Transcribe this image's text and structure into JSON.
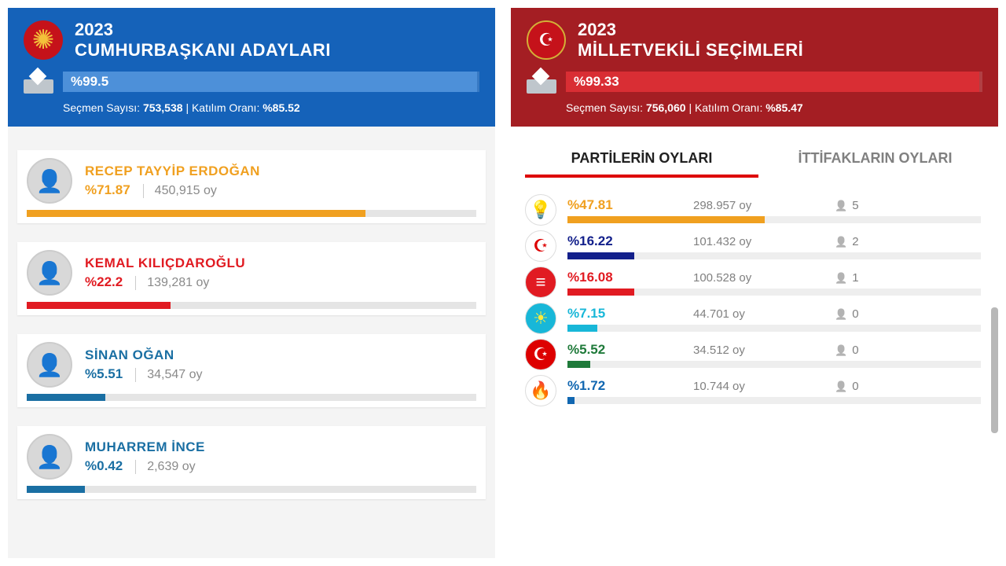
{
  "left": {
    "year": "2023",
    "title": "CUMHURBAŞKANI ADAYLARI",
    "header_bg": "#1562b9",
    "count_pct_text": "%99.5",
    "count_pct_value": 99.5,
    "count_fill_color": "#4d90d9",
    "meta_voters_label": "Seçmen Sayısı:",
    "meta_voters_value": "753,538",
    "meta_turnout_label": "Katılım Oranı:",
    "meta_turnout_value": "%85.52",
    "candidates": [
      {
        "name": "RECEP TAYYİP ERDOĞAN",
        "pct_text": "%71.87",
        "pct_value": 71.87,
        "votes": "450,915 oy",
        "color": "#f0a020"
      },
      {
        "name": "KEMAL KILIÇDAROĞLU",
        "pct_text": "%22.2",
        "pct_value": 22.2,
        "votes": "139,281 oy",
        "color": "#e11b22"
      },
      {
        "name": "SİNAN OĞAN",
        "pct_text": "%5.51",
        "pct_value": 5.51,
        "votes": "34,547 oy",
        "color": "#1a6fa3"
      },
      {
        "name": "MUHARREM İNCE",
        "pct_text": "%0.42",
        "pct_value": 0.42,
        "votes": "2,639 oy",
        "color": "#1a6fa3"
      }
    ]
  },
  "right": {
    "year": "2023",
    "title": "MİLLETVEKİLİ SEÇİMLERİ",
    "header_bg": "#a41e23",
    "count_pct_text": "%99.33",
    "count_pct_value": 99.33,
    "count_fill_color": "#d92e34",
    "meta_voters_label": "Seçmen Sayısı:",
    "meta_voters_value": "756,060",
    "meta_turnout_label": "Katılım Oranı:",
    "meta_turnout_value": "%85.47",
    "tabs": {
      "active": "PARTİLERİN OYLARI",
      "inactive": "İTTİFAKLARIN OYLARI"
    },
    "parties": [
      {
        "pct_text": "%47.81",
        "pct_value": 47.81,
        "pct_color": "#f0a020",
        "votes": "298.957 oy",
        "seats": "5",
        "bar_color": "#f0a020",
        "logo_bg": "#fff",
        "logo_glyph": "💡"
      },
      {
        "pct_text": "%16.22",
        "pct_value": 16.22,
        "pct_color": "#13208b",
        "votes": "101.432 oy",
        "seats": "2",
        "bar_color": "#13208b",
        "logo_bg": "#fff",
        "logo_glyph": "☪",
        "logo_color": "#d00"
      },
      {
        "pct_text": "%16.08",
        "pct_value": 16.08,
        "pct_color": "#e11b22",
        "votes": "100.528 oy",
        "seats": "1",
        "bar_color": "#e11b22",
        "logo_bg": "#e11b22",
        "logo_glyph": "≡",
        "logo_color": "#fff"
      },
      {
        "pct_text": "%7.15",
        "pct_value": 7.15,
        "pct_color": "#18b7d8",
        "votes": "44.701 oy",
        "seats": "0",
        "bar_color": "#18b7d8",
        "logo_bg": "#18b7d8",
        "logo_glyph": "☀",
        "logo_color": "#ffeb3b"
      },
      {
        "pct_text": "%5.52",
        "pct_value": 5.52,
        "pct_color": "#1f7a3a",
        "votes": "34.512 oy",
        "seats": "0",
        "bar_color": "#1f7a3a",
        "logo_bg": "#d00",
        "logo_glyph": "☪",
        "logo_color": "#fff"
      },
      {
        "pct_text": "%1.72",
        "pct_value": 1.72,
        "pct_color": "#1167b1",
        "votes": "10.744 oy",
        "seats": "0",
        "bar_color": "#1167b1",
        "logo_bg": "#fff",
        "logo_glyph": "🔥",
        "logo_color": "#d00"
      }
    ]
  }
}
